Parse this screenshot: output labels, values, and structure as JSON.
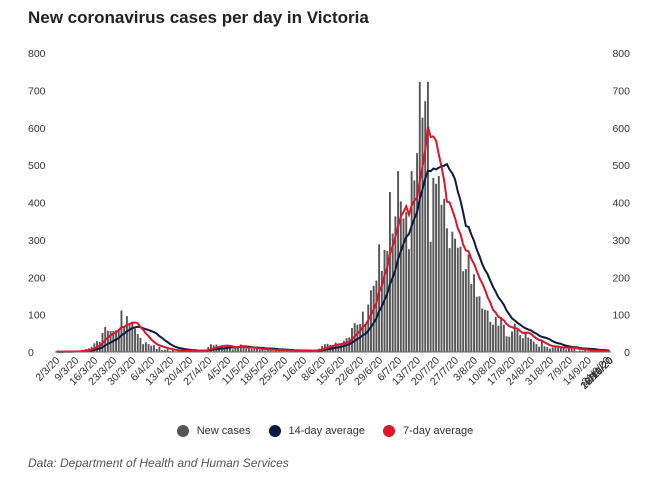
{
  "title": "New coronavirus cases per day in Victoria",
  "source": "Data: Department of Health and Human Services",
  "legend": [
    {
      "label": "New cases",
      "color": "#555555"
    },
    {
      "label": "14-day average",
      "color": "#0d1b3e"
    },
    {
      "label": "7-day average",
      "color": "#e0142a"
    }
  ],
  "chart_data": {
    "type": "bar",
    "title": "New coronavirus cases per day in Victoria",
    "xlabel": "",
    "ylabel": "",
    "ylim": [
      0,
      800
    ],
    "y_ticks": [
      0,
      100,
      200,
      300,
      400,
      500,
      600,
      700,
      800
    ],
    "y_axis_sides": "both",
    "grid": false,
    "legend_position": "bottom",
    "x_tick_labels": [
      "2/3/20",
      "9/3/20",
      "16/3/20",
      "23/3/20",
      "30/3/20",
      "6/4/20",
      "13/4/20",
      "20/4/20",
      "27/4/20",
      "4/5/20",
      "11/5/20",
      "18/5/20",
      "25/5/20",
      "1/6/20",
      "8/6/20",
      "15/6/20",
      "22/6/20",
      "29/6/20",
      "6/7/20",
      "13/7/20",
      "20/7/20",
      "27/7/20",
      "3/8/20",
      "10/8/20",
      "17/8/20",
      "24/8/20",
      "31/8/20",
      "7/9/20",
      "14/9/20",
      "21/9/20",
      "28/9/20",
      "5/10/20",
      "12/10/20",
      "19/10/20",
      "26/10/20",
      "2/11/20"
    ],
    "series": [
      {
        "name": "New cases",
        "type": "bar",
        "color": "#555555",
        "values": [
          1,
          0,
          1,
          2,
          1,
          2,
          1,
          2,
          3,
          3,
          6,
          8,
          10,
          14,
          23,
          29,
          27,
          51,
          67,
          57,
          56,
          56,
          58,
          62,
          111,
          68,
          96,
          72,
          81,
          63,
          48,
          38,
          21,
          26,
          21,
          17,
          18,
          8,
          14,
          5,
          6,
          8,
          3,
          5,
          2,
          3,
          2,
          4,
          3,
          6,
          2,
          7,
          3,
          2,
          1,
          6,
          13,
          21,
          18,
          20,
          15,
          16,
          12,
          17,
          16,
          7,
          10,
          13,
          20,
          12,
          10,
          9,
          8,
          9,
          11,
          6,
          7,
          4,
          8,
          5,
          3,
          7,
          5,
          6,
          4,
          4,
          2,
          3,
          2,
          1,
          3,
          5,
          3,
          4,
          4,
          3,
          6,
          9,
          16,
          21,
          22,
          19,
          18,
          25,
          20,
          24,
          30,
          37,
          39,
          64,
          77,
          73,
          75,
          108,
          74,
          127,
          165,
          177,
          191,
          288,
          217,
          273,
          270,
          428,
          317,
          363,
          484,
          403,
          357,
          374,
          275,
          484,
          459,
          532,
          723,
          627,
          671,
          723,
          295,
          466,
          450,
          471,
          394,
          410,
          331,
          278,
          322,
          303,
          279,
          282,
          216,
          222,
          261,
          182,
          208,
          148,
          149,
          116,
          113,
          111,
          81,
          73,
          94,
          70,
          90,
          73,
          42,
          41,
          55,
          76,
          59,
          45,
          37,
          50,
          39,
          35,
          28,
          21,
          14,
          28,
          15,
          13,
          9,
          12,
          12,
          14,
          15,
          11,
          7,
          11,
          14,
          10,
          2,
          4,
          3,
          7,
          2,
          7,
          5,
          1,
          0,
          3,
          1,
          0,
          0
        ]
      },
      {
        "name": "14-day average",
        "type": "line",
        "color": "#0d1b3e",
        "smoothing_window": 14
      },
      {
        "name": "7-day average",
        "type": "line",
        "color": "#e0142a",
        "smoothing_window": 7
      }
    ]
  }
}
